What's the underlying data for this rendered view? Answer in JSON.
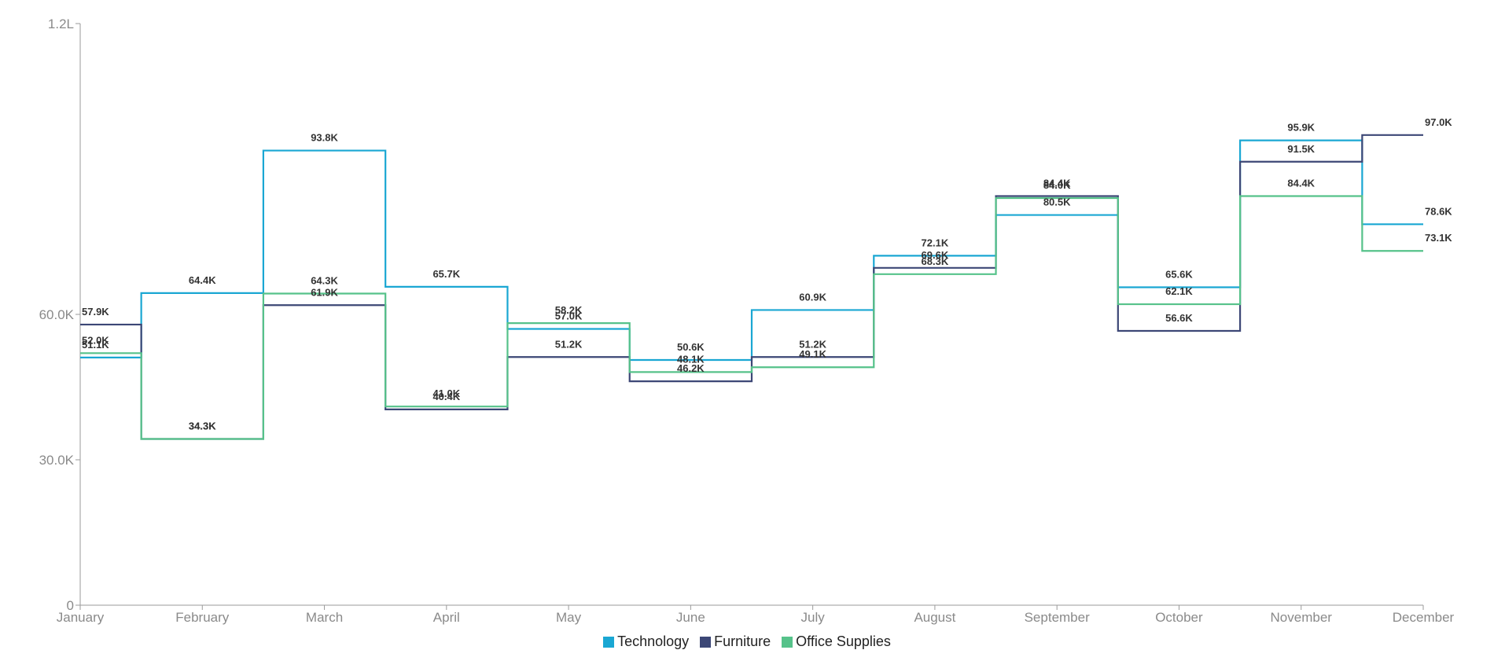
{
  "chart_data": {
    "type": "line",
    "step": true,
    "categories": [
      "January",
      "February",
      "March",
      "April",
      "May",
      "June",
      "July",
      "August",
      "September",
      "October",
      "November",
      "December"
    ],
    "y_axis": {
      "min": 0,
      "max": 120000,
      "ticks": [
        {
          "value": 0,
          "label": "0"
        },
        {
          "value": 30000,
          "label": "30.0K"
        },
        {
          "value": 60000,
          "label": "60.0K"
        },
        {
          "value": 120000,
          "label": "1.2L"
        }
      ]
    },
    "grid": false,
    "legend_position": "bottom-center",
    "series": [
      {
        "name": "Technology",
        "color": "#1AA7D3",
        "values": [
          51.1,
          64.4,
          93.8,
          65.7,
          57.0,
          50.6,
          60.9,
          72.1,
          80.5,
          65.6,
          95.9,
          78.6
        ],
        "labels": [
          "51.1K",
          "64.4K",
          "93.8K",
          "65.7K",
          "57.0K",
          "50.6K",
          "60.9K",
          "72.1K",
          "80.5K",
          "65.6K",
          "95.9K",
          "78.6K"
        ]
      },
      {
        "name": "Furniture",
        "color": "#3C4776",
        "values": [
          57.9,
          34.3,
          61.9,
          40.4,
          51.2,
          46.2,
          51.2,
          69.6,
          84.4,
          56.6,
          91.5,
          97.0
        ],
        "labels": [
          "57.9K",
          "34.3K",
          "61.9K",
          "40.4K",
          "51.2K",
          "46.2K",
          "51.2K",
          "69.6K",
          "84.4K",
          "56.6K",
          "91.5K",
          "97.0K"
        ]
      },
      {
        "name": "Office Supplies",
        "color": "#56C28A",
        "values": [
          52.0,
          34.3,
          64.3,
          41.0,
          58.2,
          48.1,
          49.1,
          68.3,
          84.0,
          62.1,
          84.4,
          73.1
        ],
        "labels": [
          "52.0K",
          "34.3K",
          "64.3K",
          "41.0K",
          "58.2K",
          "48.1K",
          "49.1K",
          "68.3K",
          "84.0K",
          "62.1K",
          "84.4K",
          "73.1K"
        ]
      }
    ]
  }
}
